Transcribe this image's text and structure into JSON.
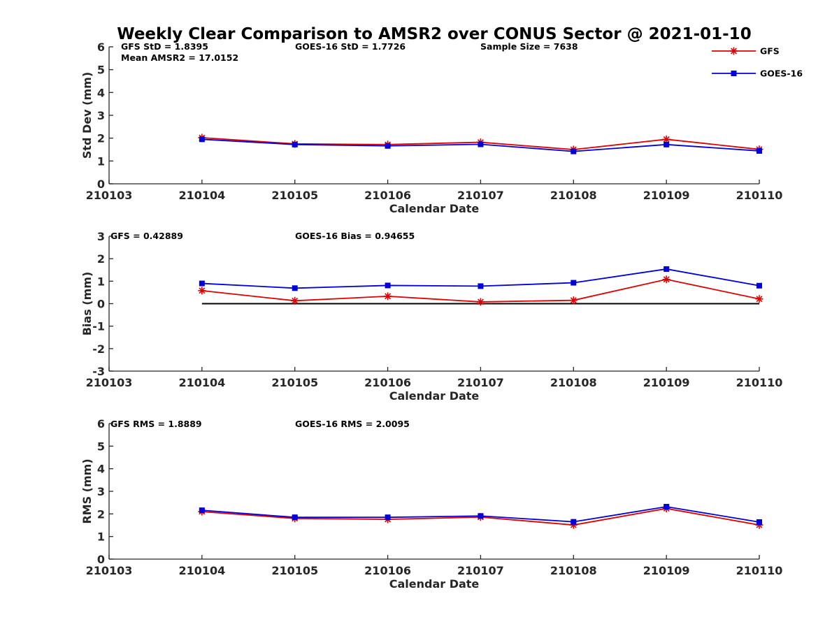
{
  "title": "Weekly Clear Comparison to AMSR2 over CONUS Sector @ 2021-01-10",
  "legend": [
    {
      "label": "GFS",
      "color": "#e00000",
      "marker": "asterisk"
    },
    {
      "label": "GOES-16",
      "color": "#0000dd",
      "marker": "square"
    }
  ],
  "chart_data": [
    {
      "type": "line",
      "ylabel": "Std Dev (mm)",
      "xlabel": "Calendar Date",
      "x_ticks": [
        "210103",
        "210104",
        "210105",
        "210106",
        "210107",
        "210108",
        "210109",
        "210110"
      ],
      "ylim": [
        0,
        6
      ],
      "y_ticks": [
        "0",
        "1",
        "2",
        "3",
        "4",
        "5",
        "6"
      ],
      "annotations": [
        "GFS StD = 1.8395",
        "GOES-16 StD = 1.7726",
        "Sample Size = 7638",
        "Mean AMSR2 = 17.0152"
      ],
      "categories": [
        "210104",
        "210105",
        "210106",
        "210107",
        "210108",
        "210109",
        "210110"
      ],
      "series": [
        {
          "name": "GFS",
          "values": [
            2.02,
            1.75,
            1.72,
            1.82,
            1.5,
            1.95,
            1.51
          ]
        },
        {
          "name": "GOES-16",
          "values": [
            1.95,
            1.72,
            1.66,
            1.73,
            1.42,
            1.72,
            1.44
          ]
        }
      ]
    },
    {
      "type": "line",
      "ylabel": "Bias (mm)",
      "xlabel": "Calendar Date",
      "x_ticks": [
        "210103",
        "210104",
        "210105",
        "210106",
        "210107",
        "210108",
        "210109",
        "210110"
      ],
      "ylim": [
        -3,
        3
      ],
      "y_ticks": [
        "-3",
        "-2",
        "-1",
        "0",
        "1",
        "2",
        "3"
      ],
      "zero_line": true,
      "annotations": [
        "GFS = 0.42889",
        "GOES-16 Bias  = 0.94655"
      ],
      "categories": [
        "210104",
        "210105",
        "210106",
        "210107",
        "210108",
        "210109",
        "210110"
      ],
      "series": [
        {
          "name": "GFS",
          "values": [
            0.58,
            0.13,
            0.33,
            0.08,
            0.15,
            1.08,
            0.21
          ]
        },
        {
          "name": "GOES-16",
          "values": [
            0.9,
            0.69,
            0.81,
            0.78,
            0.93,
            1.54,
            0.8
          ]
        }
      ]
    },
    {
      "type": "line",
      "ylabel": "RMS (mm)",
      "xlabel": "Calendar Date",
      "x_ticks": [
        "210103",
        "210104",
        "210105",
        "210106",
        "210107",
        "210108",
        "210109",
        "210110"
      ],
      "ylim": [
        0,
        6
      ],
      "y_ticks": [
        "0",
        "1",
        "2",
        "3",
        "4",
        "5",
        "6"
      ],
      "annotations": [
        "GFS RMS = 1.8889",
        "GOES-16 RMS = 2.0095"
      ],
      "categories": [
        "210104",
        "210105",
        "210106",
        "210107",
        "210108",
        "210109",
        "210110"
      ],
      "series": [
        {
          "name": "GFS",
          "values": [
            2.1,
            1.8,
            1.76,
            1.86,
            1.51,
            2.24,
            1.51
          ]
        },
        {
          "name": "GOES-16",
          "values": [
            2.16,
            1.85,
            1.85,
            1.91,
            1.65,
            2.32,
            1.64
          ]
        }
      ]
    }
  ]
}
